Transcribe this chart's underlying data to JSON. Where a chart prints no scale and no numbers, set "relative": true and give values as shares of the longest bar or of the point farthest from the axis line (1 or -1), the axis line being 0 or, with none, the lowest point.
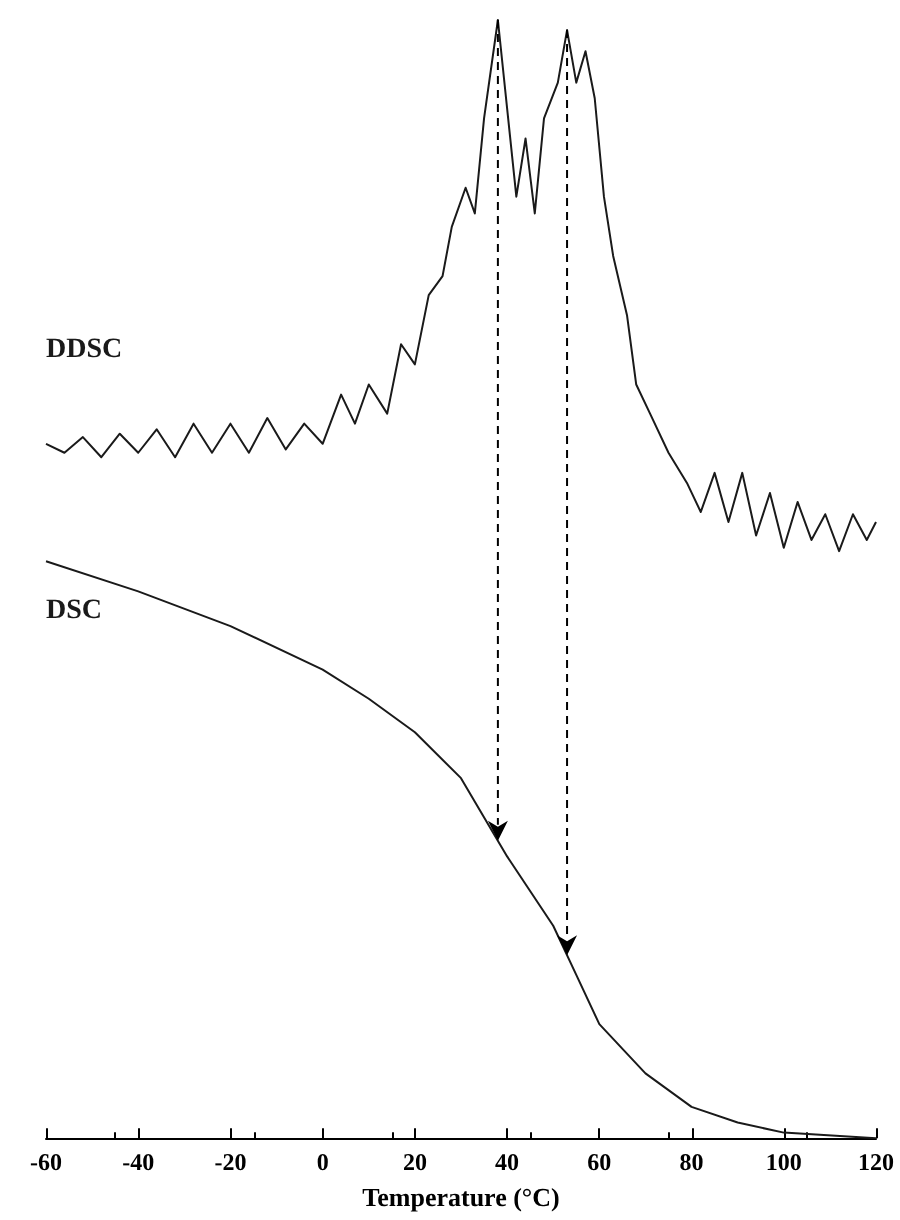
{
  "chart_data": {
    "type": "line",
    "relative": true,
    "xlabel": "Temperature (°C)",
    "xlim": [
      -60,
      120
    ],
    "xticks": [
      -60,
      -40,
      -20,
      0,
      20,
      40,
      60,
      80,
      100,
      120
    ],
    "grid": false,
    "legend": false,
    "marker": "none",
    "line_style": "solid",
    "ref_lines": [
      {
        "axis": "x",
        "value": 38,
        "line_style": "dashed"
      },
      {
        "axis": "x",
        "value": 53,
        "line_style": "dashed"
      }
    ],
    "series": [
      {
        "name": "DDSC",
        "color": "#1a1a1a",
        "x": [
          -60,
          -56,
          -52,
          -48,
          -44,
          -40,
          -36,
          -32,
          -28,
          -24,
          -20,
          -16,
          -12,
          -8,
          -4,
          0,
          4,
          7,
          10,
          14,
          17,
          20,
          23,
          26,
          28,
          31,
          33,
          35,
          38,
          40,
          42,
          44,
          46,
          48,
          51,
          53,
          55,
          57,
          59,
          61,
          63,
          66,
          68,
          71,
          75,
          79,
          82,
          85,
          88,
          91,
          94,
          97,
          100,
          103,
          106,
          109,
          112,
          115,
          118,
          120
        ],
        "values": [
          0.621,
          0.613,
          0.627,
          0.609,
          0.63,
          0.613,
          0.634,
          0.609,
          0.639,
          0.613,
          0.639,
          0.613,
          0.644,
          0.616,
          0.639,
          0.621,
          0.665,
          0.639,
          0.674,
          0.648,
          0.71,
          0.692,
          0.754,
          0.771,
          0.815,
          0.85,
          0.827,
          0.912,
          1,
          0.921,
          0.842,
          0.894,
          0.827,
          0.912,
          0.944,
          0.991,
          0.944,
          0.972,
          0.93,
          0.842,
          0.789,
          0.736,
          0.674,
          0.648,
          0.613,
          0.586,
          0.56,
          0.595,
          0.551,
          0.595,
          0.539,
          0.577,
          0.528,
          0.569,
          0.535,
          0.558,
          0.525,
          0.558,
          0.535,
          0.551
        ]
      },
      {
        "name": "DSC",
        "color": "#1a1a1a",
        "x": [
          -60,
          -40,
          -20,
          0,
          10,
          20,
          30,
          40,
          50,
          55,
          60,
          70,
          80,
          90,
          100,
          120
        ],
        "values": [
          0.516,
          0.489,
          0.458,
          0.419,
          0.393,
          0.363,
          0.322,
          0.252,
          0.19,
          0.146,
          0.102,
          0.058,
          0.028,
          0.014,
          0.005,
          0
        ]
      }
    ]
  }
}
